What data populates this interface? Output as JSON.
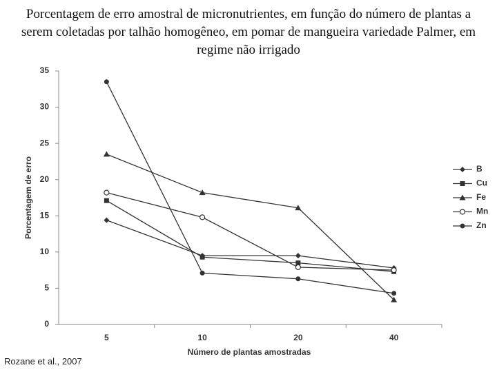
{
  "chart_data": {
    "type": "line",
    "title": "Porcentagem de erro amostral de micronutrientes, em função do número de plantas a serem coletadas por talhão homogêneo, em pomar de mangueira variedade Palmer, em regime não irrigado",
    "x_label": "Número de plantas amostradas",
    "y_label": "Porcentagem de erro",
    "source": "Rozane et al., 2007",
    "categories": [
      "5",
      "10",
      "20",
      "40"
    ],
    "series": [
      {
        "name": "B",
        "color": "#333333",
        "marker": "diamond",
        "values": [
          14.4,
          9.5,
          9.5,
          7.8
        ]
      },
      {
        "name": "Cu",
        "color": "#333333",
        "marker": "square",
        "values": [
          17.1,
          9.3,
          8.5,
          7.3
        ]
      },
      {
        "name": "Fe",
        "color": "#333333",
        "marker": "triangle",
        "values": [
          23.5,
          18.2,
          16.1,
          3.4
        ]
      },
      {
        "name": "Mn",
        "color": "#333333",
        "marker": "open-circle",
        "values": [
          18.2,
          14.8,
          7.9,
          7.5
        ]
      },
      {
        "name": "Zn",
        "color": "#333333",
        "marker": "circle",
        "values": [
          33.5,
          7.1,
          6.3,
          4.3
        ]
      }
    ],
    "ylim": [
      0,
      35
    ],
    "yticks": [
      0,
      5,
      10,
      15,
      20,
      25,
      30,
      35
    ],
    "grid": false,
    "legend": "right"
  }
}
